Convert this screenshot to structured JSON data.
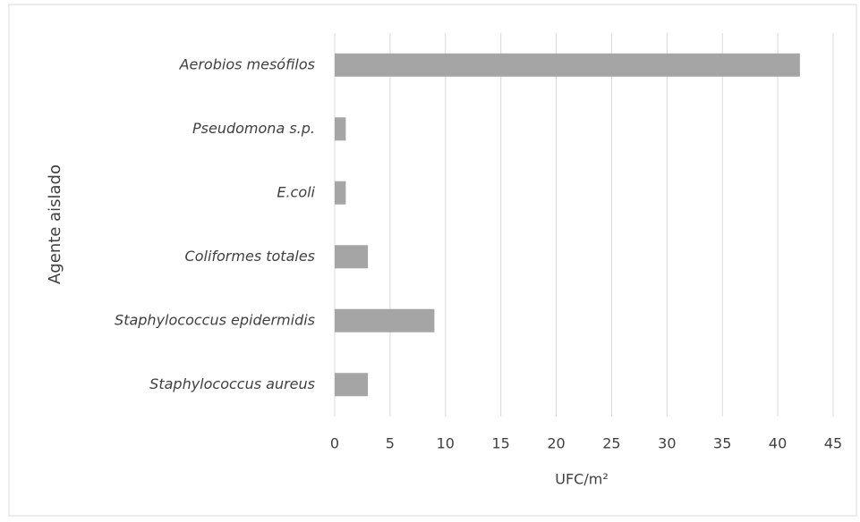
{
  "chart_data": {
    "type": "bar",
    "orientation": "horizontal",
    "categories": [
      "Aerobios mesófilos",
      "Pseudomona s.p.",
      "E.coli",
      "Coliformes totales",
      "Staphylococcus epidermidis",
      "Staphylococcus aureus"
    ],
    "values": [
      42,
      1,
      1,
      3,
      9,
      3
    ],
    "color": "#a5a5a5",
    "xlabel": "UFC/m²",
    "ylabel": "Agente aislado",
    "xlim": [
      0,
      45
    ],
    "xticks": [
      0,
      5,
      10,
      15,
      20,
      25,
      30,
      35,
      40,
      45
    ],
    "grid": true
  }
}
